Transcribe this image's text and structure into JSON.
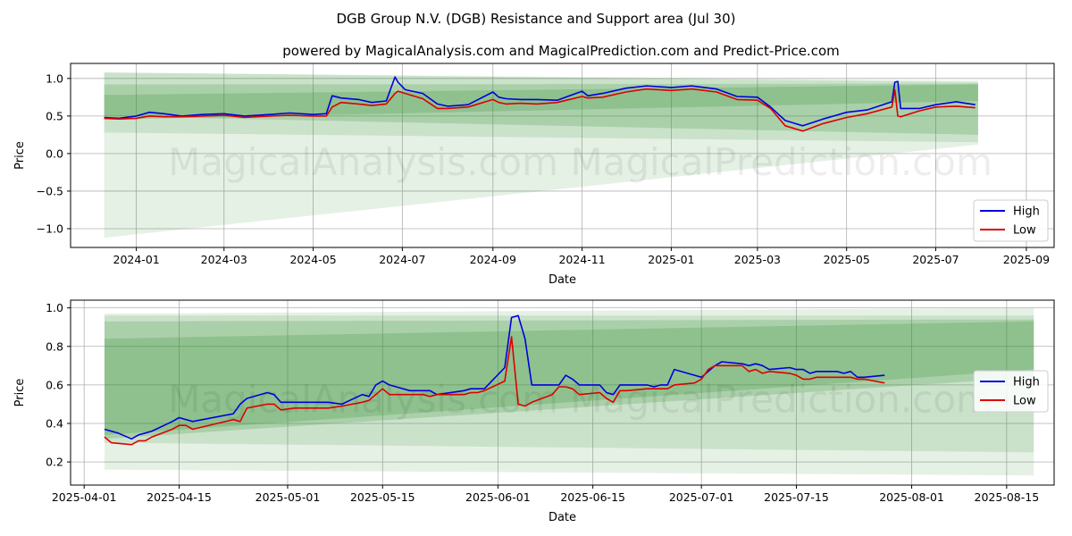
{
  "title": "DGB Group N.V. (DGB) Resistance and Support area (Jul 30)",
  "subtitle": "powered by MagicalAnalysis.com and MagicalPrediction.com and Predict-Price.com",
  "watermark": "MagicalAnalysis.com   MagicalPrediction.com",
  "colors": {
    "high": "#0000dd",
    "low": "#dd0000",
    "band": "#2e8b2e",
    "grid": "#b0b0b0"
  },
  "chart_data": [
    {
      "type": "line",
      "xlabel": "Date",
      "ylabel": "Price",
      "xlim": [
        "2023-11-17",
        "2025-09-20"
      ],
      "ylim": [
        -1.25,
        1.2
      ],
      "x_ticks": [
        "2024-01-01",
        "2024-03-01",
        "2024-05-01",
        "2024-07-01",
        "2024-09-01",
        "2024-11-01",
        "2025-01-01",
        "2025-03-01",
        "2025-05-01",
        "2025-07-01",
        "2025-09-01"
      ],
      "x_tick_labels": [
        "2024-01",
        "2024-03",
        "2024-05",
        "2024-07",
        "2024-09",
        "2024-11",
        "2025-01",
        "2025-03",
        "2025-05",
        "2025-07",
        "2025-09"
      ],
      "y_ticks": [
        1.0,
        0.5,
        0.0,
        -0.5,
        -1.0
      ],
      "y_tick_labels": [
        "1.0",
        "0.5",
        "0.0",
        "−0.5",
        "−1.0"
      ],
      "grid": true,
      "legend": {
        "position": "bottom-right",
        "entries": [
          "High",
          "Low"
        ]
      },
      "bands": [
        {
          "x": [
            "2023-12-10",
            "2025-07-30"
          ],
          "top": [
            1.08,
            0.97
          ],
          "bottom": [
            -1.12,
            0.12
          ]
        },
        {
          "x": [
            "2023-12-10",
            "2025-07-30"
          ],
          "top": [
            1.08,
            0.95
          ],
          "bottom": [
            0.28,
            0.15
          ]
        },
        {
          "x": [
            "2023-12-10",
            "2025-07-30"
          ],
          "top": [
            0.92,
            0.93
          ],
          "bottom": [
            0.5,
            0.25
          ]
        },
        {
          "x": [
            "2023-12-10",
            "2025-07-30"
          ],
          "top": [
            0.78,
            0.92
          ],
          "bottom": [
            0.45,
            0.7
          ]
        }
      ],
      "series": [
        {
          "name": "High",
          "x": [
            "2023-12-10",
            "2023-12-20",
            "2024-01-01",
            "2024-01-10",
            "2024-01-20",
            "2024-02-01",
            "2024-02-15",
            "2024-03-01",
            "2024-03-15",
            "2024-04-01",
            "2024-04-15",
            "2024-05-01",
            "2024-05-10",
            "2024-05-14",
            "2024-05-20",
            "2024-06-01",
            "2024-06-10",
            "2024-06-20",
            "2024-06-26",
            "2024-06-28",
            "2024-07-03",
            "2024-07-15",
            "2024-07-25",
            "2024-08-01",
            "2024-08-15",
            "2024-09-01",
            "2024-09-05",
            "2024-09-10",
            "2024-09-20",
            "2024-10-01",
            "2024-10-15",
            "2024-11-01",
            "2024-11-05",
            "2024-11-15",
            "2024-12-01",
            "2024-12-15",
            "2025-01-01",
            "2025-01-15",
            "2025-02-01",
            "2025-02-15",
            "2025-03-01",
            "2025-03-10",
            "2025-03-20",
            "2025-04-01",
            "2025-04-15",
            "2025-05-01",
            "2025-05-15",
            "2025-06-01",
            "2025-06-03",
            "2025-06-05",
            "2025-06-07",
            "2025-06-20",
            "2025-07-01",
            "2025-07-15",
            "2025-07-28"
          ],
          "values": [
            0.48,
            0.47,
            0.5,
            0.55,
            0.53,
            0.5,
            0.52,
            0.53,
            0.5,
            0.52,
            0.54,
            0.52,
            0.53,
            0.77,
            0.74,
            0.72,
            0.68,
            0.7,
            1.02,
            0.95,
            0.85,
            0.8,
            0.66,
            0.63,
            0.65,
            0.82,
            0.75,
            0.73,
            0.72,
            0.72,
            0.71,
            0.83,
            0.77,
            0.8,
            0.87,
            0.9,
            0.88,
            0.9,
            0.86,
            0.76,
            0.75,
            0.62,
            0.44,
            0.37,
            0.46,
            0.55,
            0.58,
            0.69,
            0.95,
            0.96,
            0.6,
            0.6,
            0.65,
            0.69,
            0.65
          ]
        },
        {
          "name": "Low",
          "x": [
            "2023-12-10",
            "2023-12-20",
            "2024-01-01",
            "2024-01-10",
            "2024-01-20",
            "2024-02-01",
            "2024-02-15",
            "2024-03-01",
            "2024-03-15",
            "2024-04-01",
            "2024-04-15",
            "2024-05-01",
            "2024-05-10",
            "2024-05-14",
            "2024-05-20",
            "2024-06-01",
            "2024-06-10",
            "2024-06-20",
            "2024-06-26",
            "2024-06-28",
            "2024-07-03",
            "2024-07-15",
            "2024-07-25",
            "2024-08-01",
            "2024-08-15",
            "2024-09-01",
            "2024-09-05",
            "2024-09-10",
            "2024-09-20",
            "2024-10-01",
            "2024-10-15",
            "2024-11-01",
            "2024-11-05",
            "2024-11-15",
            "2024-12-01",
            "2024-12-15",
            "2025-01-01",
            "2025-01-15",
            "2025-02-01",
            "2025-02-15",
            "2025-03-01",
            "2025-03-10",
            "2025-03-20",
            "2025-04-01",
            "2025-04-15",
            "2025-05-01",
            "2025-05-15",
            "2025-06-01",
            "2025-06-03",
            "2025-06-05",
            "2025-06-07",
            "2025-06-20",
            "2025-07-01",
            "2025-07-15",
            "2025-07-28"
          ],
          "values": [
            0.47,
            0.46,
            0.47,
            0.5,
            0.49,
            0.49,
            0.5,
            0.51,
            0.48,
            0.5,
            0.51,
            0.5,
            0.5,
            0.62,
            0.68,
            0.66,
            0.64,
            0.66,
            0.8,
            0.83,
            0.8,
            0.73,
            0.6,
            0.6,
            0.62,
            0.72,
            0.68,
            0.66,
            0.67,
            0.66,
            0.68,
            0.76,
            0.74,
            0.75,
            0.82,
            0.86,
            0.84,
            0.86,
            0.82,
            0.72,
            0.71,
            0.6,
            0.37,
            0.3,
            0.4,
            0.48,
            0.53,
            0.62,
            0.85,
            0.5,
            0.49,
            0.57,
            0.62,
            0.63,
            0.61
          ]
        }
      ]
    },
    {
      "type": "line",
      "xlabel": "Date",
      "ylabel": "Price",
      "xlim": [
        "2025-03-30",
        "2025-08-22"
      ],
      "ylim": [
        0.08,
        1.04
      ],
      "x_ticks": [
        "2025-04-01",
        "2025-04-15",
        "2025-05-01",
        "2025-05-15",
        "2025-06-01",
        "2025-06-15",
        "2025-07-01",
        "2025-07-15",
        "2025-08-01",
        "2025-08-15"
      ],
      "x_tick_labels": [
        "2025-04-01",
        "2025-04-15",
        "2025-05-01",
        "2025-05-15",
        "2025-06-01",
        "2025-06-15",
        "2025-07-01",
        "2025-07-15",
        "2025-08-01",
        "2025-08-15"
      ],
      "y_ticks": [
        1.0,
        0.8,
        0.6,
        0.4,
        0.2
      ],
      "y_tick_labels": [
        "1.0",
        "0.8",
        "0.6",
        "0.4",
        "0.2"
      ],
      "grid": true,
      "legend": {
        "position": "center-right",
        "entries": [
          "High",
          "Low"
        ]
      },
      "bands": [
        {
          "x": [
            "2025-04-04",
            "2025-08-19"
          ],
          "top": [
            0.97,
            1.0
          ],
          "bottom": [
            0.16,
            0.13
          ]
        },
        {
          "x": [
            "2025-04-04",
            "2025-08-19"
          ],
          "top": [
            0.96,
            0.96
          ],
          "bottom": [
            0.3,
            0.25
          ]
        },
        {
          "x": [
            "2025-04-04",
            "2025-08-19"
          ],
          "top": [
            0.93,
            0.94
          ],
          "bottom": [
            0.32,
            0.64
          ]
        },
        {
          "x": [
            "2025-04-04",
            "2025-08-19"
          ],
          "top": [
            0.84,
            0.93
          ],
          "bottom": [
            0.34,
            0.68
          ]
        }
      ],
      "series": [
        {
          "name": "High",
          "x": [
            "2025-04-04",
            "2025-04-06",
            "2025-04-08",
            "2025-04-09",
            "2025-04-10",
            "2025-04-11",
            "2025-04-14",
            "2025-04-15",
            "2025-04-17",
            "2025-04-23",
            "2025-04-24",
            "2025-04-25",
            "2025-04-28",
            "2025-04-29",
            "2025-04-30",
            "2025-05-02",
            "2025-05-05",
            "2025-05-06",
            "2025-05-07",
            "2025-05-09",
            "2025-05-12",
            "2025-05-13",
            "2025-05-14",
            "2025-05-15",
            "2025-05-16",
            "2025-05-17",
            "2025-05-19",
            "2025-05-20",
            "2025-05-21",
            "2025-05-22",
            "2025-05-23",
            "2025-05-27",
            "2025-05-28",
            "2025-05-29",
            "2025-05-30",
            "2025-06-02",
            "2025-06-03",
            "2025-06-04",
            "2025-06-05",
            "2025-06-06",
            "2025-06-09",
            "2025-06-10",
            "2025-06-11",
            "2025-06-12",
            "2025-06-13",
            "2025-06-16",
            "2025-06-17",
            "2025-06-18",
            "2025-06-19",
            "2025-06-20",
            "2025-06-23",
            "2025-06-24",
            "2025-06-25",
            "2025-06-26",
            "2025-06-27",
            "2025-06-30",
            "2025-07-01",
            "2025-07-02",
            "2025-07-03",
            "2025-07-04",
            "2025-07-07",
            "2025-07-08",
            "2025-07-09",
            "2025-07-10",
            "2025-07-11",
            "2025-07-14",
            "2025-07-15",
            "2025-07-16",
            "2025-07-17",
            "2025-07-18",
            "2025-07-21",
            "2025-07-22",
            "2025-07-23",
            "2025-07-24",
            "2025-07-25",
            "2025-07-28"
          ],
          "values": [
            0.37,
            0.35,
            0.32,
            0.34,
            0.35,
            0.36,
            0.41,
            0.43,
            0.41,
            0.45,
            0.5,
            0.53,
            0.56,
            0.55,
            0.51,
            0.51,
            0.51,
            0.51,
            0.51,
            0.5,
            0.55,
            0.54,
            0.6,
            0.62,
            0.6,
            0.59,
            0.57,
            0.57,
            0.57,
            0.57,
            0.55,
            0.57,
            0.58,
            0.58,
            0.58,
            0.69,
            0.95,
            0.96,
            0.84,
            0.6,
            0.6,
            0.6,
            0.65,
            0.63,
            0.6,
            0.6,
            0.56,
            0.55,
            0.6,
            0.6,
            0.6,
            0.59,
            0.6,
            0.6,
            0.68,
            0.65,
            0.64,
            0.67,
            0.7,
            0.72,
            0.71,
            0.7,
            0.71,
            0.7,
            0.68,
            0.69,
            0.68,
            0.68,
            0.66,
            0.67,
            0.67,
            0.66,
            0.67,
            0.64,
            0.64,
            0.65
          ]
        },
        {
          "name": "Low",
          "x": [
            "2025-04-04",
            "2025-04-05",
            "2025-04-08",
            "2025-04-09",
            "2025-04-10",
            "2025-04-11",
            "2025-04-14",
            "2025-04-15",
            "2025-04-16",
            "2025-04-17",
            "2025-04-23",
            "2025-04-24",
            "2025-04-25",
            "2025-04-28",
            "2025-04-29",
            "2025-04-30",
            "2025-05-02",
            "2025-05-05",
            "2025-05-06",
            "2025-05-07",
            "2025-05-09",
            "2025-05-12",
            "2025-05-13",
            "2025-05-14",
            "2025-05-15",
            "2025-05-16",
            "2025-05-19",
            "2025-05-20",
            "2025-05-21",
            "2025-05-22",
            "2025-05-23",
            "2025-05-27",
            "2025-05-28",
            "2025-05-29",
            "2025-05-30",
            "2025-06-02",
            "2025-06-03",
            "2025-06-04",
            "2025-06-05",
            "2025-06-06",
            "2025-06-09",
            "2025-06-10",
            "2025-06-11",
            "2025-06-12",
            "2025-06-13",
            "2025-06-16",
            "2025-06-17",
            "2025-06-18",
            "2025-06-19",
            "2025-06-20",
            "2025-06-23",
            "2025-06-24",
            "2025-06-25",
            "2025-06-26",
            "2025-06-27",
            "2025-06-30",
            "2025-07-01",
            "2025-07-02",
            "2025-07-03",
            "2025-07-04",
            "2025-07-07",
            "2025-07-08",
            "2025-07-09",
            "2025-07-10",
            "2025-07-11",
            "2025-07-14",
            "2025-07-15",
            "2025-07-16",
            "2025-07-17",
            "2025-07-18",
            "2025-07-21",
            "2025-07-22",
            "2025-07-23",
            "2025-07-24",
            "2025-07-25",
            "2025-07-28"
          ],
          "values": [
            0.33,
            0.3,
            0.29,
            0.31,
            0.31,
            0.33,
            0.37,
            0.39,
            0.39,
            0.37,
            0.42,
            0.41,
            0.48,
            0.5,
            0.5,
            0.47,
            0.48,
            0.48,
            0.48,
            0.48,
            0.49,
            0.51,
            0.52,
            0.55,
            0.58,
            0.55,
            0.55,
            0.55,
            0.55,
            0.54,
            0.55,
            0.55,
            0.56,
            0.56,
            0.57,
            0.62,
            0.85,
            0.5,
            0.49,
            0.51,
            0.55,
            0.59,
            0.59,
            0.58,
            0.55,
            0.56,
            0.53,
            0.51,
            0.57,
            0.57,
            0.58,
            0.58,
            0.58,
            0.58,
            0.6,
            0.61,
            0.63,
            0.68,
            0.7,
            0.7,
            0.7,
            0.67,
            0.68,
            0.66,
            0.67,
            0.66,
            0.65,
            0.63,
            0.63,
            0.64,
            0.64,
            0.64,
            0.64,
            0.63,
            0.63,
            0.61
          ]
        }
      ]
    }
  ]
}
